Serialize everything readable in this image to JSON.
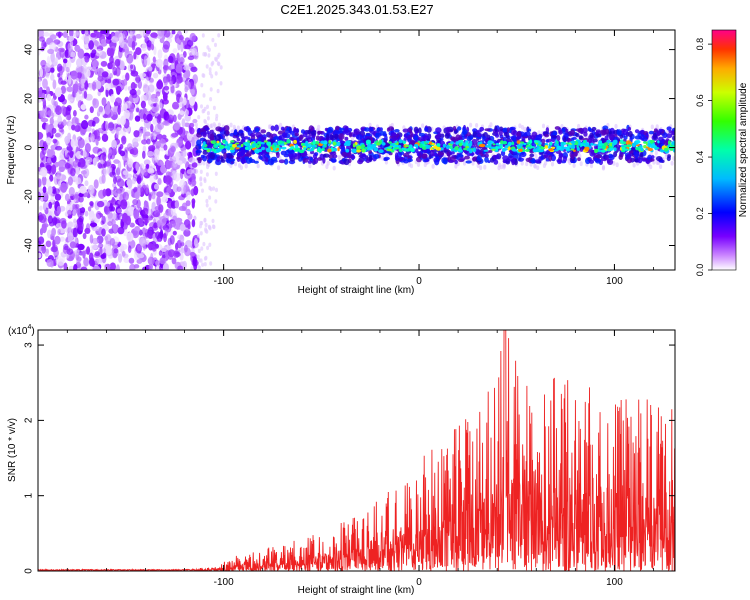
{
  "title": "C2E1.2025.343.01.53.E27",
  "chart_data": [
    {
      "type": "heatmap",
      "name": "spectrogram",
      "xlabel": "Height of straight line (km)",
      "ylabel": "Frequency (Hz)",
      "xlim": [
        -195,
        131
      ],
      "ylim": [
        -50,
        48
      ],
      "xticks": [
        -100,
        0,
        100
      ],
      "xtick_labels": [
        "-100",
        "0",
        "100"
      ],
      "yticks": [
        -40,
        -20,
        0,
        20,
        40
      ],
      "ytick_labels": [
        "-40",
        "-20",
        "0",
        "20",
        "40"
      ],
      "noise_region_x": [
        -195,
        -114
      ],
      "signal_band_hz": [
        -6,
        8
      ],
      "signal_start_x": -114,
      "colorbar": {
        "label": "Normalized spectral amplitude",
        "range": [
          0,
          0.85
        ],
        "ticks": [
          0.0,
          0.2,
          0.4,
          0.6,
          0.8
        ],
        "tick_labels": [
          "0.0",
          "0.2",
          "0.4",
          "0.6",
          "0.8"
        ]
      }
    },
    {
      "type": "line",
      "name": "snr",
      "xlabel": "Height of straight line (km)",
      "ylabel": "SNR (10 * v/v)",
      "scale_label": "(x10",
      "scale_exp": "4",
      "scale_close": ")",
      "xlim": [
        -195,
        131
      ],
      "ylim": [
        0,
        3.2
      ],
      "xticks": [
        -100,
        0,
        100
      ],
      "xtick_labels": [
        "-100",
        "0",
        "100"
      ],
      "yticks": [
        0,
        1,
        2,
        3
      ],
      "ytick_labels": [
        "0",
        "1",
        "2",
        "3"
      ],
      "color": "#ee2222",
      "envelope": [
        {
          "x": -195,
          "y": 0.02
        },
        {
          "x": -120,
          "y": 0.02
        },
        {
          "x": -105,
          "y": 0.06
        },
        {
          "x": -90,
          "y": 0.25
        },
        {
          "x": -70,
          "y": 0.35
        },
        {
          "x": -50,
          "y": 0.55
        },
        {
          "x": -30,
          "y": 0.75
        },
        {
          "x": -15,
          "y": 1.1
        },
        {
          "x": 0,
          "y": 1.5
        },
        {
          "x": 15,
          "y": 2.0
        },
        {
          "x": 30,
          "y": 2.2
        },
        {
          "x": 44,
          "y": 3.2
        },
        {
          "x": 60,
          "y": 2.3
        },
        {
          "x": 72,
          "y": 2.7
        },
        {
          "x": 90,
          "y": 2.4
        },
        {
          "x": 110,
          "y": 2.3
        },
        {
          "x": 131,
          "y": 2.3
        }
      ]
    }
  ]
}
